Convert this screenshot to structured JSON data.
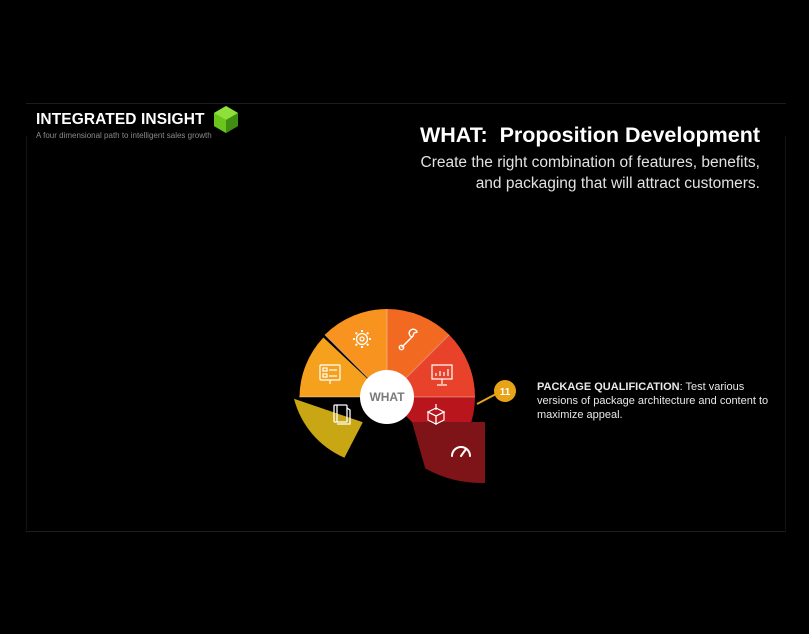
{
  "brand": {
    "title": "INTEGRATED INSIGHT",
    "subtitle": "A four dimensional path to intelligent sales growth",
    "logo_color": "#6cc51a"
  },
  "header": {
    "title": "WHAT:  Proposition Development",
    "subtitle": "Create the right combination of features, benefits,\nand packaging  that  will attract customers."
  },
  "wheel": {
    "center_label": "WHAT",
    "segments": [
      {
        "name": "book",
        "color": "#c8a614"
      },
      {
        "name": "checklist-board",
        "color": "#f6a11d"
      },
      {
        "name": "gear",
        "color": "#f7931e"
      },
      {
        "name": "wrench",
        "color": "#f26a21"
      },
      {
        "name": "chart-presentation",
        "color": "#e8432a"
      },
      {
        "name": "package-box",
        "color": "#b8151c"
      },
      {
        "name": "speedometer",
        "color": "#7e1417"
      }
    ],
    "highlight": {
      "number": "11",
      "badge_color": "#e8a317"
    }
  },
  "detail": {
    "label": "PACKAGE QUALIFICATION",
    "text": ":  Test various versions of package architecture and content to maximize appeal."
  }
}
